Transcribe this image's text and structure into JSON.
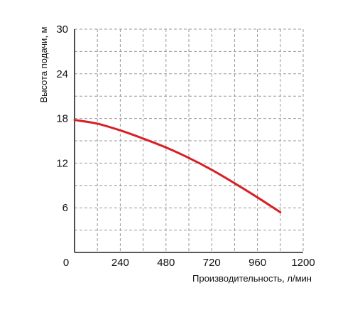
{
  "chart_data": {
    "type": "line",
    "xlabel": "Производительность, л/мин",
    "ylabel": "Высота подачи, м",
    "xlim": [
      0,
      1200
    ],
    "ylim": [
      0,
      30
    ],
    "x_ticks": [
      0,
      240,
      480,
      720,
      960,
      1200
    ],
    "y_ticks": [
      6,
      12,
      18,
      24,
      30
    ],
    "x_tick_labels": [
      "0",
      "240",
      "480",
      "720",
      "960",
      "1200"
    ],
    "y_tick_labels": [
      "6",
      "12",
      "18",
      "24",
      "30"
    ],
    "x_grid_step": 120,
    "y_grid_step": 3,
    "grid": true,
    "series": [
      {
        "color": "#d62027",
        "x": [
          0,
          120,
          240,
          360,
          480,
          600,
          720,
          840,
          960,
          1080
        ],
        "y": [
          17.8,
          17.3,
          16.4,
          15.3,
          14.1,
          12.7,
          11.1,
          9.3,
          7.4,
          5.4
        ]
      }
    ]
  }
}
